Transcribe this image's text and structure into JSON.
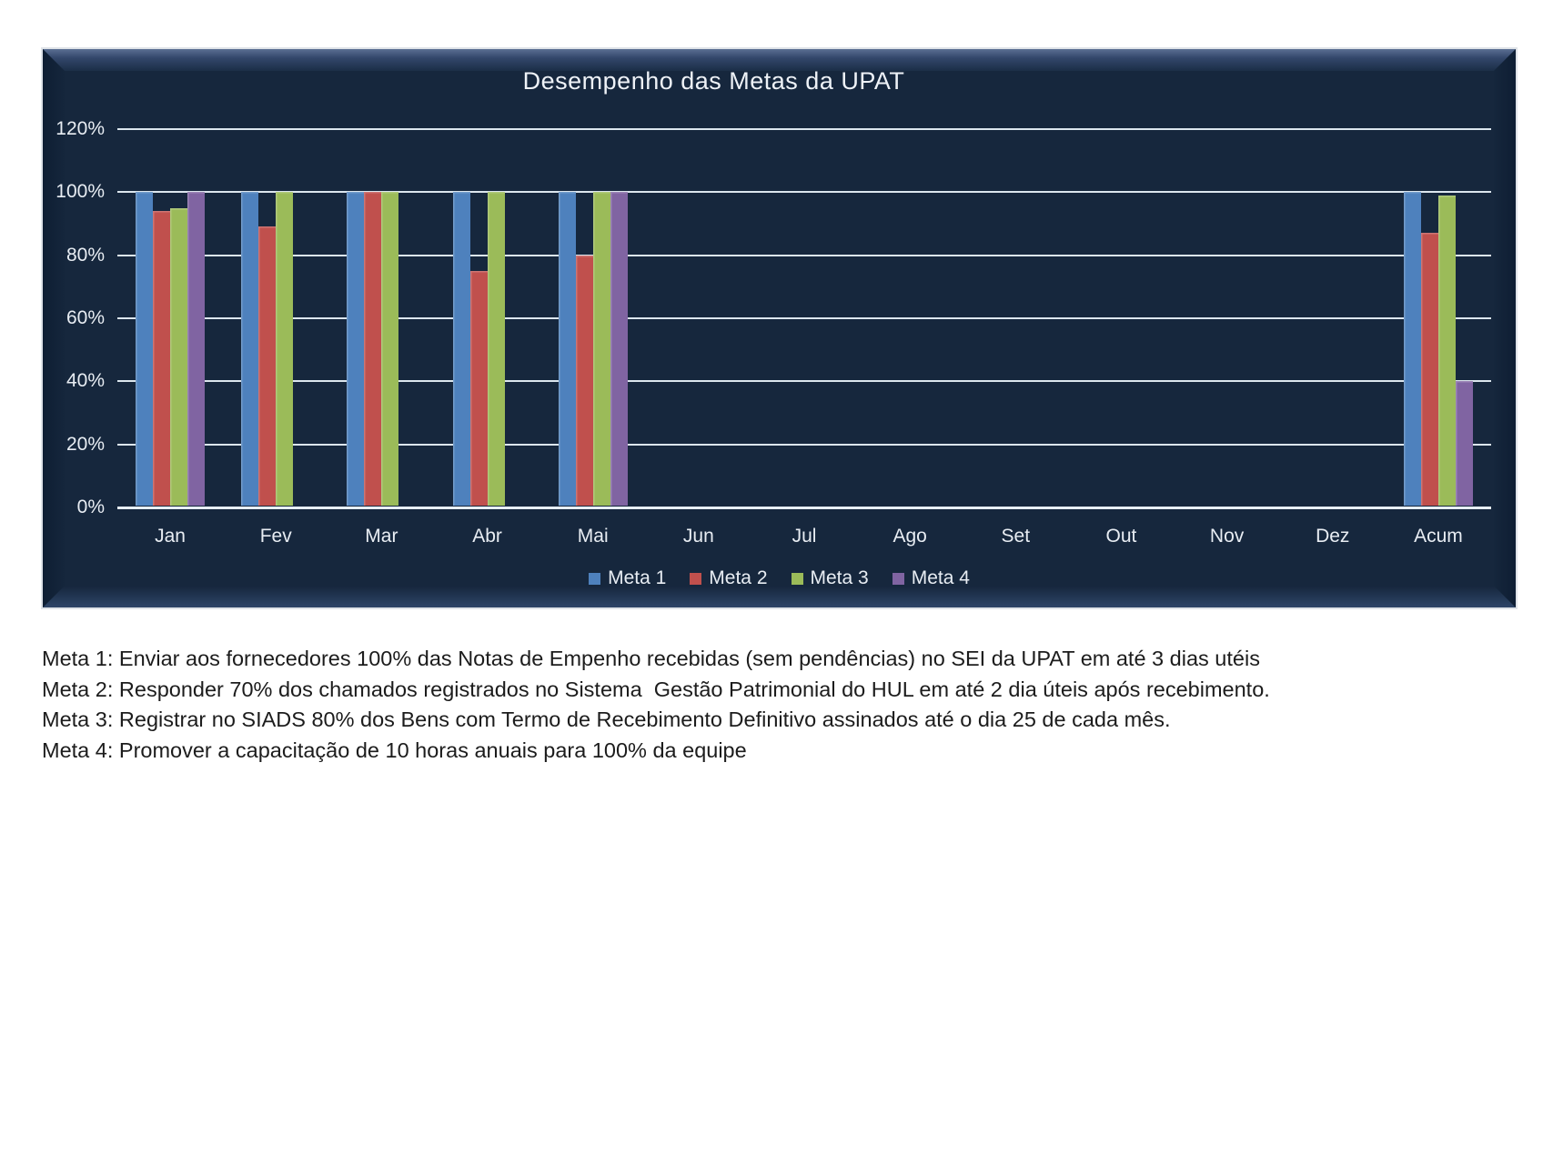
{
  "chart_data": {
    "type": "bar",
    "title": "Desempenho das Metas da UPAT",
    "categories": [
      "Jan",
      "Fev",
      "Mar",
      "Abr",
      "Mai",
      "Jun",
      "Jul",
      "Ago",
      "Set",
      "Out",
      "Nov",
      "Dez",
      "Acum"
    ],
    "series": [
      {
        "name": "Meta 1",
        "color": "#4e81bd",
        "values": [
          100,
          100,
          100,
          100,
          100,
          0,
          0,
          0,
          0,
          0,
          0,
          0,
          100
        ]
      },
      {
        "name": "Meta 2",
        "color": "#c0504d",
        "values": [
          94,
          89,
          100,
          75,
          80,
          0,
          0,
          0,
          0,
          0,
          0,
          0,
          87
        ]
      },
      {
        "name": "Meta 3",
        "color": "#9bbb59",
        "values": [
          95,
          100,
          100,
          100,
          100,
          0,
          0,
          0,
          0,
          0,
          0,
          0,
          99
        ]
      },
      {
        "name": "Meta 4",
        "color": "#8064a2",
        "values": [
          100,
          0,
          0,
          0,
          100,
          0,
          0,
          0,
          0,
          0,
          0,
          0,
          40
        ]
      }
    ],
    "ylim": [
      0,
      120
    ],
    "ytick_step": 20,
    "ytick_labels": [
      "0%",
      "20%",
      "40%",
      "60%",
      "80%",
      "100%",
      "120%"
    ],
    "grid": true,
    "legend_position": "bottom"
  },
  "panel": {
    "background": "#16273d",
    "gridline_color": "#dce6ee",
    "axis_text_color": "#e8edf3"
  },
  "notes": {
    "lines": [
      "Meta 1: Enviar aos fornecedores 100% das Notas de Empenho recebidas (sem pendências) no SEI da UPAT em até 3 dias utéis",
      "Meta 2: Responder 70% dos chamados registrados no Sistema  Gestão Patrimonial do HUL em até 2 dia úteis após recebimento.",
      "Meta 3: Registrar no SIADS 80% dos Bens com Termo de Recebimento Definitivo assinados até o dia 25 de cada mês.",
      "Meta 4: Promover a capacitação de 10 horas anuais para 100% da equipe"
    ]
  }
}
